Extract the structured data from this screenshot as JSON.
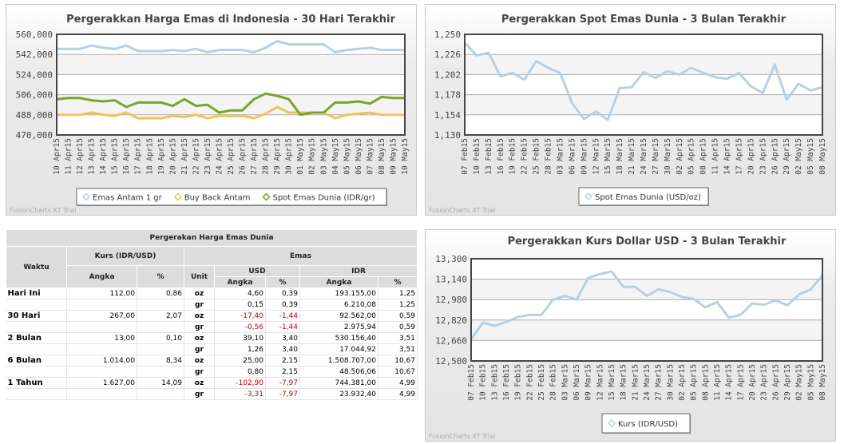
{
  "charts": [
    {
      "type": "line",
      "title": "Pergerakkan Harga Emas di Indonesia - 30 Hari Terakhir",
      "categories": [
        "10 Apr15",
        "11 Apr15",
        "12 Apr15",
        "13 Apr15",
        "14 Apr15",
        "15 Apr15",
        "16 Apr15",
        "17 Apr15",
        "18 Apr15",
        "19 Apr15",
        "20 Apr15",
        "21 Apr15",
        "22 Apr15",
        "23 Apr15",
        "24 Apr15",
        "25 Apr15",
        "26 Apr15",
        "27 Apr15",
        "28 Apr15",
        "29 Apr15",
        "30 Apr15",
        "01 May15",
        "02 May15",
        "03 May15",
        "04 May15",
        "05 May15",
        "06 May15",
        "07 May15",
        "08 May15",
        "09 May15",
        "10 May15"
      ],
      "ylim": [
        470000,
        560000
      ],
      "yticks": [
        "470,000",
        "488,000",
        "506,000",
        "524,000",
        "542,000",
        "560,000"
      ],
      "grid": true,
      "legend": "bottom",
      "watermark": "FusionCharts XT Trial",
      "series": [
        {
          "name": "Emas Antam 1 gr",
          "color": "#b8d0e3",
          "values": [
            547000,
            547000,
            547000,
            550000,
            548000,
            547000,
            550000,
            545000,
            545000,
            545000,
            546000,
            545000,
            547000,
            544000,
            546000,
            546000,
            546000,
            544000,
            548000,
            554000,
            551000,
            551000,
            551000,
            551000,
            544000,
            546000,
            547000,
            548000,
            546000,
            546000,
            546000
          ]
        },
        {
          "name": "Buy Back Antam",
          "color": "#f2c25a",
          "values": [
            488000,
            488000,
            488000,
            490000,
            488000,
            487000,
            490000,
            485000,
            485000,
            485000,
            487000,
            486000,
            488000,
            485000,
            487000,
            487000,
            487000,
            485000,
            489000,
            495000,
            490000,
            490000,
            490000,
            490000,
            485000,
            488000,
            489000,
            490000,
            488000,
            488000,
            488000
          ]
        },
        {
          "name": "Spot Emas Dunia (IDR/gr)",
          "color": "#7ba428",
          "values": [
            502000,
            503000,
            503000,
            501000,
            500000,
            501000,
            495000,
            499000,
            499000,
            499000,
            496000,
            502000,
            496000,
            497000,
            490000,
            492000,
            492000,
            502000,
            507000,
            505000,
            502000,
            488000,
            490000,
            490000,
            499000,
            499000,
            500000,
            498000,
            504000,
            503000,
            503000
          ]
        }
      ]
    },
    {
      "type": "line",
      "title": "Pergerakkan Spot Emas Dunia - 3 Bulan Terakhir",
      "categories": [
        "07 Feb15",
        "10 Feb15",
        "13 Feb15",
        "16 Feb15",
        "19 Feb15",
        "22 Feb15",
        "25 Feb15",
        "28 Feb15",
        "03 Mar15",
        "06 Mar15",
        "09 Mar15",
        "12 Mar15",
        "15 Mar15",
        "18 Mar15",
        "21 Mar15",
        "24 Mar15",
        "27 Mar15",
        "30 Mar15",
        "02 Apr15",
        "05 Apr15",
        "08 Apr15",
        "11 Apr15",
        "14 Apr15",
        "17 Apr15",
        "20 Apr15",
        "23 Apr15",
        "26 Apr15",
        "29 Apr15",
        "02 May15",
        "05 May15",
        "08 May15"
      ],
      "ylim": [
        1130,
        1250
      ],
      "yticks": [
        "1,130",
        "1,154",
        "1,178",
        "1,202",
        "1,226",
        "1,250"
      ],
      "grid": true,
      "legend": "bottom",
      "watermark": "FusionCharts XT Trial",
      "series": [
        {
          "name": "Spot Emas Dunia (USD/oz)",
          "color": "#b8d0e3",
          "values": [
            1240,
            1225,
            1228,
            1200,
            1204,
            1196,
            1218,
            1210,
            1204,
            1168,
            1149,
            1158,
            1148,
            1186,
            1187,
            1205,
            1198,
            1206,
            1202,
            1210,
            1204,
            1199,
            1197,
            1204,
            1188,
            1180,
            1214,
            1172,
            1191,
            1183,
            1187
          ]
        }
      ]
    },
    {
      "type": "line",
      "title": "Pergerakkan Kurs Dollar USD - 3 Bulan Terakhir",
      "categories": [
        "07 Feb15",
        "10 Feb15",
        "13 Feb15",
        "16 Feb15",
        "19 Feb15",
        "22 Feb15",
        "25 Feb15",
        "28 Feb15",
        "03 Mar15",
        "06 Mar15",
        "09 Mar15",
        "12 Mar15",
        "15 Mar15",
        "18 Mar15",
        "21 Mar15",
        "24 Mar15",
        "27 Mar15",
        "30 Mar15",
        "02 Apr15",
        "05 Apr15",
        "08 Apr15",
        "11 Apr15",
        "14 Apr15",
        "17 Apr15",
        "20 Apr15",
        "23 Apr15",
        "26 Apr15",
        "29 Apr15",
        "02 May15",
        "05 May15",
        "08 May15"
      ],
      "ylim": [
        12500,
        13300
      ],
      "yticks": [
        "12,500",
        "12,660",
        "12,820",
        "12,980",
        "13,140",
        "13,300"
      ],
      "grid": true,
      "legend": "bottom",
      "watermark": "FusionCharts XT Trial",
      "series": [
        {
          "name": "Kurs (IDR/USD)",
          "color": "#b8d0e3",
          "values": [
            12670,
            12800,
            12775,
            12805,
            12845,
            12860,
            12860,
            12980,
            13010,
            12980,
            13150,
            13180,
            13200,
            13080,
            13080,
            13010,
            13060,
            13040,
            13000,
            12985,
            12920,
            12960,
            12840,
            12860,
            12950,
            12940,
            12975,
            12935,
            13020,
            13060,
            13170
          ]
        }
      ]
    }
  ],
  "table": {
    "title": "Pergerakan Harga Emas Dunia",
    "h_waktu": "Waktu",
    "h_kurs": "Kurs (IDR/USD)",
    "h_emas": "Emas",
    "h_angka": "Angka",
    "h_pct": "%",
    "h_unit": "Unit",
    "h_usd": "USD",
    "h_idr": "IDR",
    "rows": [
      {
        "waktu": "Hari Ini",
        "kurs": "112,00",
        "kurs_pct": "0,86",
        "unit": "oz",
        "usd": "4,60",
        "usd_pct": "0,39",
        "idr": "193.155,00",
        "idr_pct": "1,25"
      },
      {
        "waktu": "",
        "kurs": "",
        "kurs_pct": "",
        "unit": "gr",
        "usd": "0,15",
        "usd_pct": "0,39",
        "idr": "6.210,08",
        "idr_pct": "1,25"
      },
      {
        "waktu": "30 Hari",
        "kurs": "267,00",
        "kurs_pct": "2,07",
        "unit": "oz",
        "usd": "-17,40",
        "usd_pct": "-1,44",
        "idr": "92.562,00",
        "idr_pct": "0,59"
      },
      {
        "waktu": "",
        "kurs": "",
        "kurs_pct": "",
        "unit": "gr",
        "usd": "-0,56",
        "usd_pct": "-1,44",
        "idr": "2.975,94",
        "idr_pct": "0,59"
      },
      {
        "waktu": "2 Bulan",
        "kurs": "13,00",
        "kurs_pct": "0,10",
        "unit": "oz",
        "usd": "39,10",
        "usd_pct": "3,40",
        "idr": "530.156,40",
        "idr_pct": "3,51"
      },
      {
        "waktu": "",
        "kurs": "",
        "kurs_pct": "",
        "unit": "gr",
        "usd": "1,26",
        "usd_pct": "3,40",
        "idr": "17.044,92",
        "idr_pct": "3,51"
      },
      {
        "waktu": "6 Bulan",
        "kurs": "1.014,00",
        "kurs_pct": "8,34",
        "unit": "oz",
        "usd": "25,00",
        "usd_pct": "2,15",
        "idr": "1.508.707,00",
        "idr_pct": "10,67"
      },
      {
        "waktu": "",
        "kurs": "",
        "kurs_pct": "",
        "unit": "gr",
        "usd": "0,80",
        "usd_pct": "2,15",
        "idr": "48.506,06",
        "idr_pct": "10,67"
      },
      {
        "waktu": "1 Tahun",
        "kurs": "1.627,00",
        "kurs_pct": "14,09",
        "unit": "oz",
        "usd": "-102,90",
        "usd_pct": "-7,97",
        "idr": "744.381,00",
        "idr_pct": "4,99"
      },
      {
        "waktu": "",
        "kurs": "",
        "kurs_pct": "",
        "unit": "gr",
        "usd": "-3,31",
        "usd_pct": "-7,97",
        "idr": "23.932,40",
        "idr_pct": "4,99"
      }
    ],
    "negative_color": "#c00000"
  }
}
